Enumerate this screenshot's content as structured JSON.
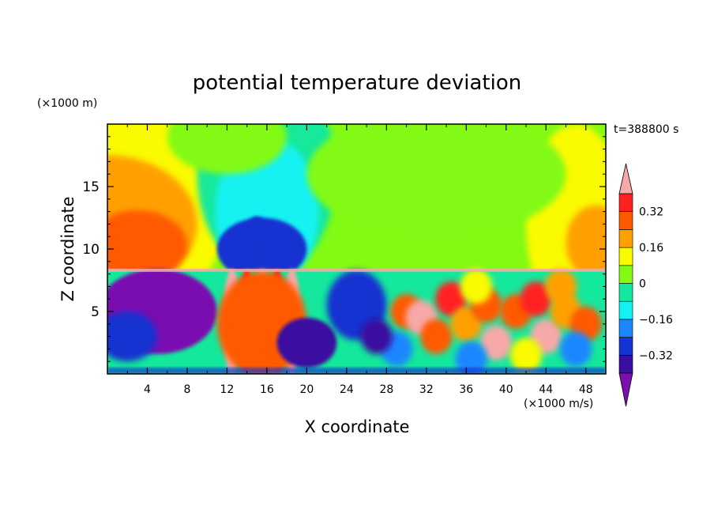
{
  "chart_data": {
    "type": "heatmap",
    "title": "potential temperature deviation",
    "xlabel": "X coordinate",
    "ylabel": "Z coordinate",
    "x_units": "(×1000 m/s)",
    "y_units": "(×1000 m)",
    "time_label": "t=388800 s",
    "xlim": [
      0,
      50
    ],
    "ylim": [
      0,
      20
    ],
    "x_ticks": [
      4,
      8,
      12,
      16,
      20,
      24,
      28,
      32,
      36,
      40,
      44,
      48
    ],
    "y_ticks": [
      5,
      10,
      15
    ],
    "colorbar": {
      "levels": [
        -0.4,
        -0.32,
        -0.24,
        -0.16,
        -0.08,
        0,
        0.08,
        0.16,
        0.24,
        0.32,
        0.4
      ],
      "tick_labels": [
        {
          "value": 0.32,
          "label": "0.32"
        },
        {
          "value": 0.16,
          "label": "0.16"
        },
        {
          "value": 0,
          "label": "0"
        },
        {
          "value": -0.16,
          "label": "−0.16"
        },
        {
          "value": -0.32,
          "label": "−0.32"
        }
      ],
      "colors": [
        "#7a10b0",
        "#3a0ea0",
        "#1433d0",
        "#1a86ff",
        "#12f2f2",
        "#14e89c",
        "#82fa14",
        "#fafa00",
        "#ffa000",
        "#ff5a00",
        "#ff2020",
        "#f7a8a8"
      ],
      "extend": "both"
    }
  }
}
